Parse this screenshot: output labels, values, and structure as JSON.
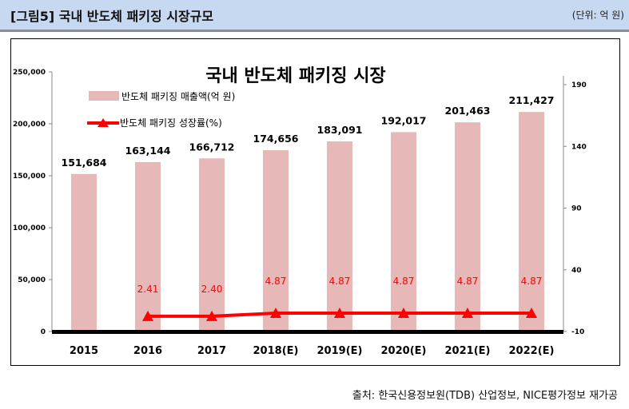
{
  "header": {
    "title": "[그림5] 국내 반도체 패키징 시장규모",
    "unit": "(단위: 억 원)"
  },
  "source": "출처: 한국신용정보원(TDB) 산업정보, NICE평가정보 재가공",
  "colors": {
    "bar": "#e6b9b8",
    "line": "#ff0000",
    "axis": "#000000"
  },
  "chart_data": {
    "type": "bar+line",
    "title": "국내 반도체 패키징 시장",
    "categories": [
      "2015",
      "2016",
      "2017",
      "2018(E)",
      "2019(E)",
      "2020(E)",
      "2021(E)",
      "2022(E)"
    ],
    "series": [
      {
        "name": "반도체 패키징 매출액(억 원)",
        "type": "bar",
        "axis": "left",
        "values": [
          151684,
          163144,
          166712,
          174656,
          183091,
          192017,
          201463,
          211427
        ],
        "labels": [
          "151,684",
          "163,144",
          "166,712",
          "174,656",
          "183,091",
          "192,017",
          "201,463",
          "211,427"
        ]
      },
      {
        "name": "반도체 패키징 성장률(%)",
        "type": "line",
        "axis": "right",
        "values": [
          null,
          2.41,
          2.4,
          4.87,
          4.87,
          4.87,
          4.87,
          4.87
        ],
        "labels": [
          "",
          "2.41",
          "2.40",
          "4.87",
          "4.87",
          "4.87",
          "4.87",
          "4.87"
        ]
      }
    ],
    "left_axis": {
      "range": [
        0,
        250000
      ],
      "ticks": [
        "0",
        "50,000",
        "100,000",
        "150,000",
        "200,000",
        "250,000"
      ]
    },
    "right_axis": {
      "range": [
        -10,
        190
      ],
      "ticks": [
        "-10",
        "40",
        "90",
        "140",
        "190"
      ]
    },
    "legend": "top-left",
    "grid": false
  }
}
